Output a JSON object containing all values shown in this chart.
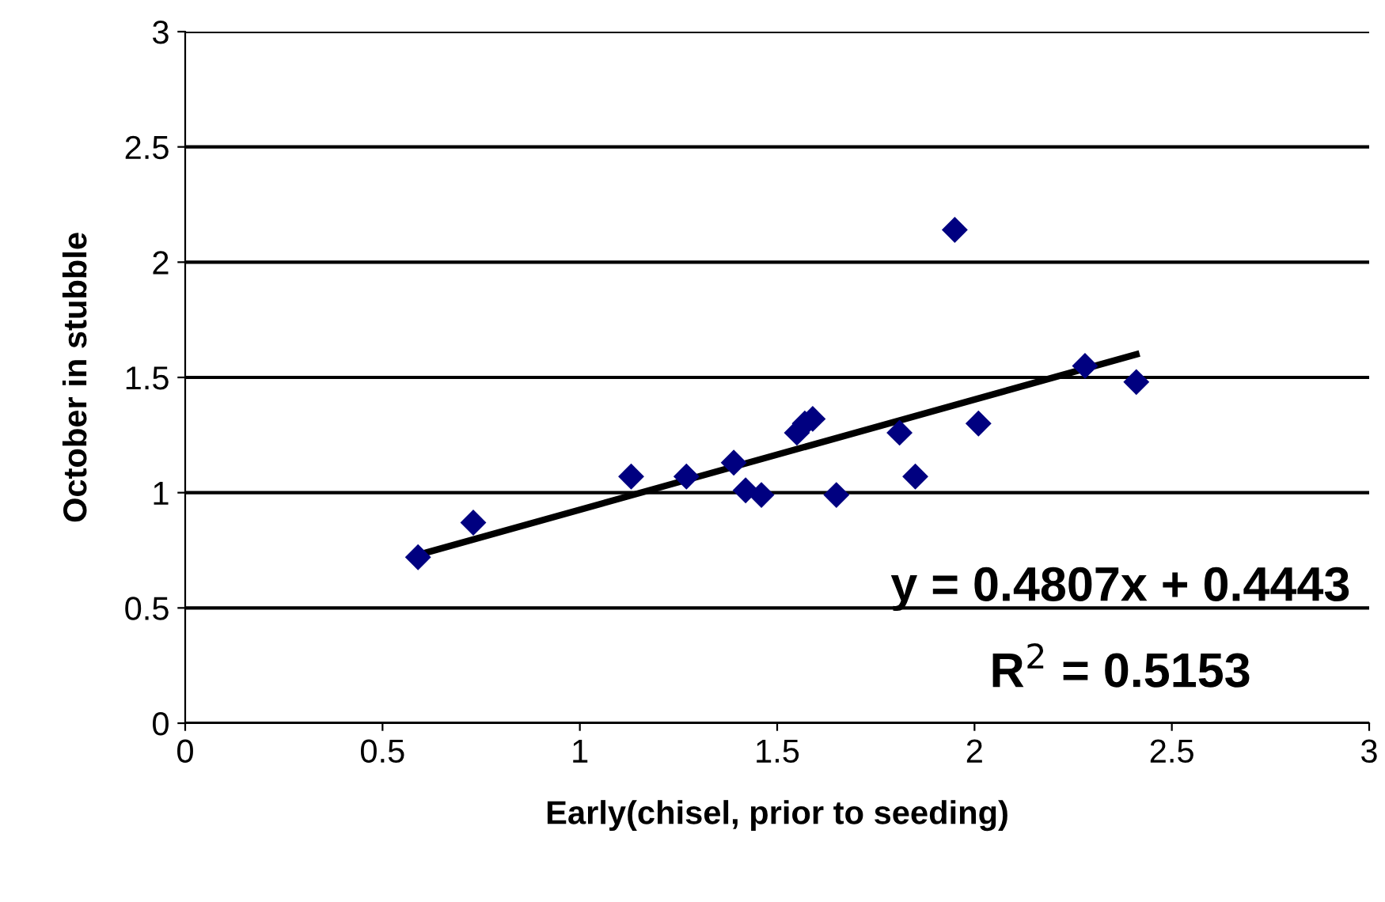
{
  "chart_data": {
    "type": "scatter",
    "xlabel": "Early(chisel, prior to seeding)",
    "ylabel": "October in stubble",
    "xlim": [
      0,
      3
    ],
    "xticks": [
      0,
      0.5,
      1,
      1.5,
      2,
      2.5,
      3
    ],
    "ylim": [
      0,
      3
    ],
    "yticks": [
      0,
      0.5,
      1,
      1.5,
      2,
      2.5,
      3
    ],
    "grid": "y",
    "legend": false,
    "series": [
      {
        "marker": "diamond",
        "color": "#000080",
        "x": [
          0.59,
          0.73,
          1.13,
          1.27,
          1.39,
          1.42,
          1.46,
          1.55,
          1.57,
          1.59,
          1.65,
          1.81,
          1.85,
          1.95,
          2.01,
          2.28,
          2.41
        ],
        "values": [
          0.72,
          0.87,
          1.07,
          1.07,
          1.13,
          1.01,
          0.99,
          1.26,
          1.3,
          1.32,
          0.99,
          1.26,
          1.07,
          2.14,
          1.3,
          1.55,
          1.48
        ]
      },
      {
        "type": "line",
        "color": "#000000",
        "x": [
          0.59,
          2.41
        ],
        "values": [
          0.73,
          1.6
        ]
      }
    ],
    "annotations": [
      {
        "text": "y = 0.4807x + 0.4443"
      },
      {
        "text": "R$^{2}$ = 0.5153"
      }
    ]
  }
}
